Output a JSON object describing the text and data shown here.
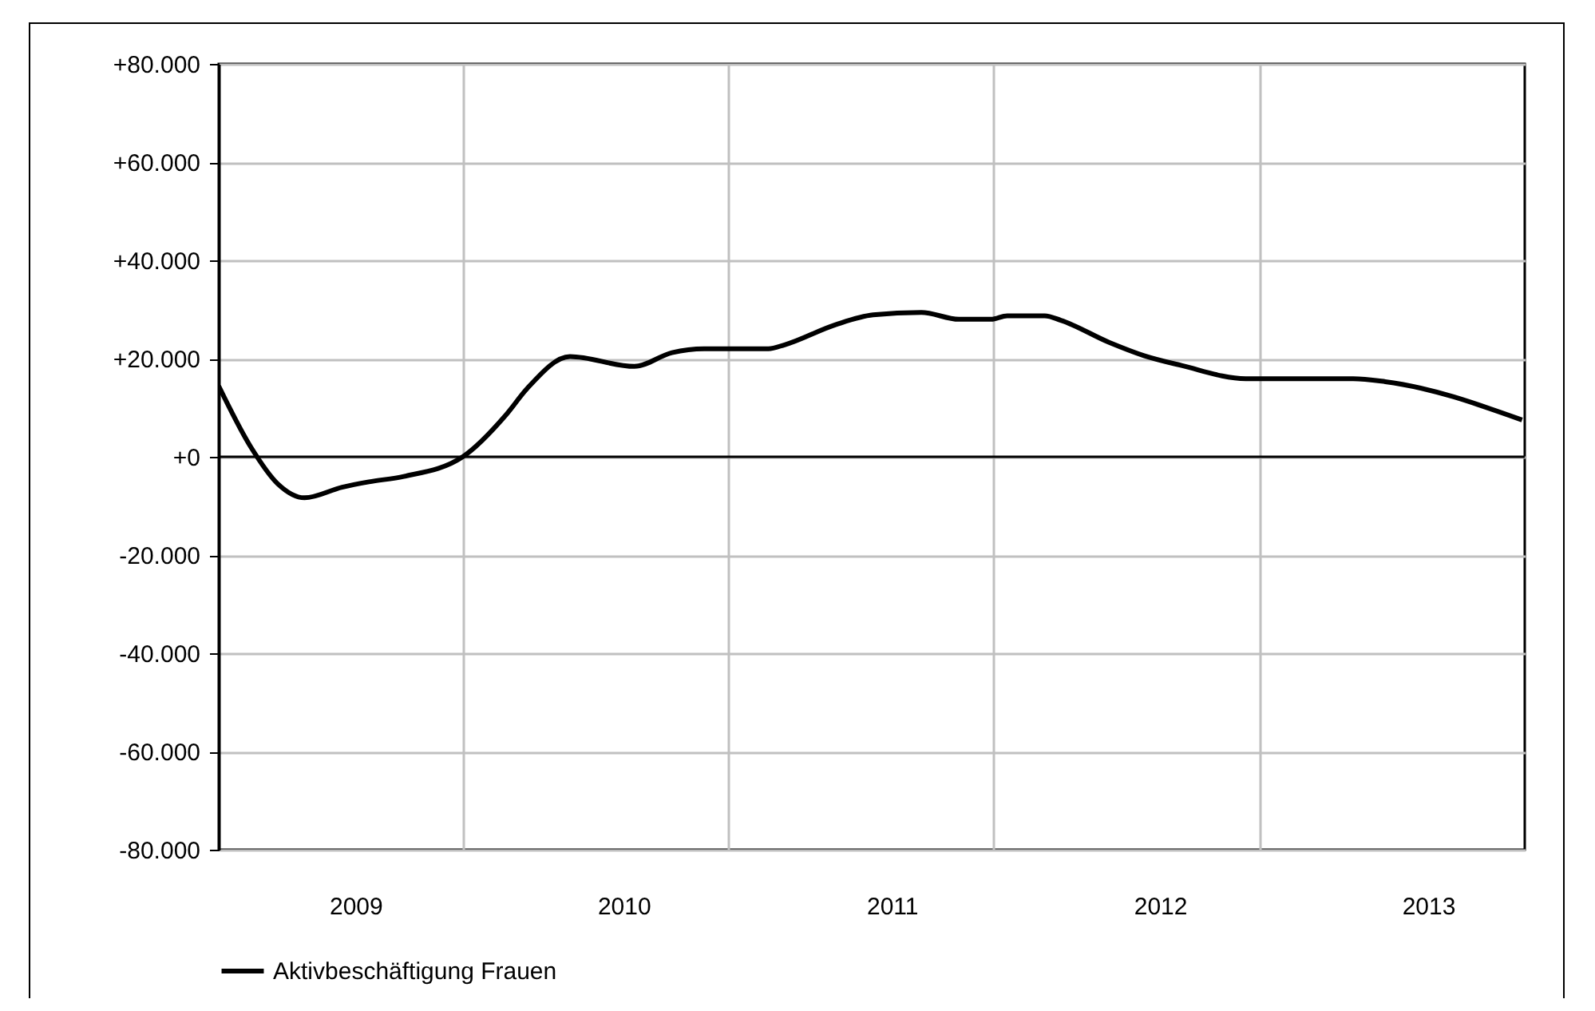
{
  "chart_data": {
    "type": "line",
    "x": [
      2008.99,
      2009.11,
      2009.21,
      2009.31,
      2009.45,
      2009.55,
      2009.68,
      2009.9,
      2010.06,
      2010.14,
      2010.3,
      2010.54,
      2010.68,
      2010.8,
      2011.04,
      2011.1,
      2011.29,
      2011.43,
      2011.61,
      2011.75,
      2011.87,
      2011.93,
      2012.07,
      2012.13,
      2012.31,
      2012.44,
      2012.58,
      2012.82,
      2013.22,
      2013.34,
      2013.85
    ],
    "series": [
      {
        "name": "Aktivbeschäftigung Frauen",
        "color": "#000000",
        "values": [
          14400,
          1950,
          -5500,
          -8350,
          -6200,
          -5100,
          -4000,
          0,
          8450,
          13900,
          20400,
          18400,
          21200,
          22000,
          22000,
          22800,
          26900,
          28900,
          29400,
          28000,
          28000,
          28700,
          28700,
          27800,
          23300,
          20600,
          18600,
          15900,
          15900,
          15300,
          7500
        ]
      }
    ],
    "xlim": [
      2008.99,
      2013.86
    ],
    "xticks": [
      {
        "value": 2009.5,
        "label": "2009"
      },
      {
        "value": 2009.9,
        "label": null
      },
      {
        "value": 2010.5,
        "label": "2010"
      },
      {
        "value": 2010.89,
        "label": null
      },
      {
        "value": 2011.5,
        "label": "2011"
      },
      {
        "value": 2011.88,
        "label": null
      },
      {
        "value": 2012.5,
        "label": "2012"
      },
      {
        "value": 2012.87,
        "label": null
      },
      {
        "value": 2013.5,
        "label": "2013"
      }
    ],
    "ylim": [
      -80000,
      80000
    ],
    "yticks": [
      {
        "value": -80000,
        "label": "-80.000"
      },
      {
        "value": -60000,
        "label": "-60.000"
      },
      {
        "value": -40000,
        "label": "-40.000"
      },
      {
        "value": -20000,
        "label": "-20.000"
      },
      {
        "value": 0,
        "label": "+0"
      },
      {
        "value": 20000,
        "label": "+20.000"
      },
      {
        "value": 40000,
        "label": "+40.000"
      },
      {
        "value": 60000,
        "label": "+60.000"
      },
      {
        "value": 80000,
        "label": "+80.000"
      }
    ],
    "ref_lines": [
      {
        "axis": "y",
        "value": 0,
        "color": "#000000"
      }
    ],
    "grid": true,
    "legend": "bottom",
    "marker": "none",
    "line_style": "solid"
  }
}
